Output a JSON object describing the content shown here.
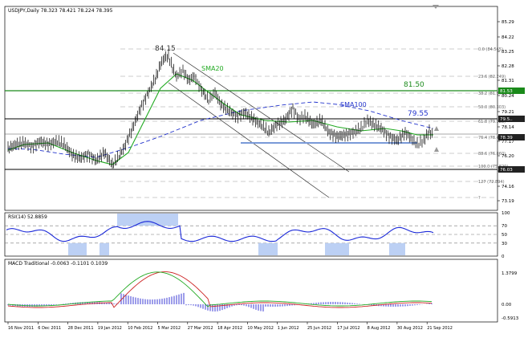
{
  "colors": {
    "background": "#ffffff",
    "price": "#000000",
    "sma20": "#22aa22",
    "sma100": "#2233cc",
    "resistance_green": "#1a8a1a",
    "channel": "#333333",
    "fib": "#888888",
    "rsi": "#1a28d8",
    "rsi_zone": "#bcd0f4",
    "macd_hist": "#3b3bd6",
    "macd_signal": "#cc2222",
    "macd_line": "#22aa22",
    "label_bg": "#222222",
    "label_green_bg": "#1a8a1a"
  },
  "main": {
    "title": "USDJPY,Daily  78.323 78.421 78.224 78.395",
    "annotations": {
      "peak": "84.15",
      "sma20": "SMA20",
      "sma100": "SMA100",
      "level_8150": "81.50",
      "level_7955": "79.55"
    },
    "fib_labels": [
      {
        "text": "0.0 (84.565)"
      },
      {
        "text": "23.6 (82.249)"
      },
      {
        "text": "38.2 (81.974)"
      },
      {
        "text": "50.0 (80.303)"
      },
      {
        "text": "61.8 (79.528)"
      },
      {
        "text": "76.4 (78.440)"
      },
      {
        "text": "88.6 (76.860)"
      },
      {
        "text": "100.0 (75.820)"
      },
      {
        "text": "127 (72.894)"
      },
      {
        "text": "?"
      }
    ],
    "price_axis": [
      {
        "label": "85.29"
      },
      {
        "label": "84.22"
      },
      {
        "label": "83.25"
      },
      {
        "label": "82.28"
      },
      {
        "label": "81.31"
      },
      {
        "label": "80.24"
      },
      {
        "label": "79.21"
      },
      {
        "label": "78.14"
      },
      {
        "label": "77.17"
      },
      {
        "label": "76.20"
      },
      {
        "label": "75.13"
      },
      {
        "label": "74.16"
      },
      {
        "label": "73.19"
      }
    ],
    "price_tags": [
      {
        "label": "81.53",
        "type": "green"
      },
      {
        "label": "79.5.."
      },
      {
        "label": "78.39",
        "type": "dark"
      },
      {
        "label": "76.03",
        "type": "dark"
      }
    ]
  },
  "rsi": {
    "title": "RSI(14) 52.8859",
    "axis": [
      {
        "label": "100"
      },
      {
        "label": "70"
      },
      {
        "label": "50"
      },
      {
        "label": "30"
      },
      {
        "label": "0"
      }
    ]
  },
  "macd": {
    "title": "MACD Traditional -0.0063 -0.1101 0.1039",
    "axis": [
      {
        "label": "1.3799"
      },
      {
        "label": "0.00"
      },
      {
        "label": "-0.5913"
      }
    ]
  },
  "time_axis": [
    {
      "label": "16 Nov 2011"
    },
    {
      "label": "6 Dec 2011"
    },
    {
      "label": "28 Dec 2011"
    },
    {
      "label": "19 Jan 2012"
    },
    {
      "label": "10 Feb 2012"
    },
    {
      "label": "5 Mar 2012"
    },
    {
      "label": "27 Mar 2012"
    },
    {
      "label": "18 Apr 2012"
    },
    {
      "label": "10 May 2012"
    },
    {
      "label": "1 Jun 2012"
    },
    {
      "label": "25 Jun 2012"
    },
    {
      "label": "17 Jul 2012"
    },
    {
      "label": "8 Aug 2012"
    },
    {
      "label": "30 Aug 2012"
    },
    {
      "label": "21 Sep 2012"
    }
  ]
}
